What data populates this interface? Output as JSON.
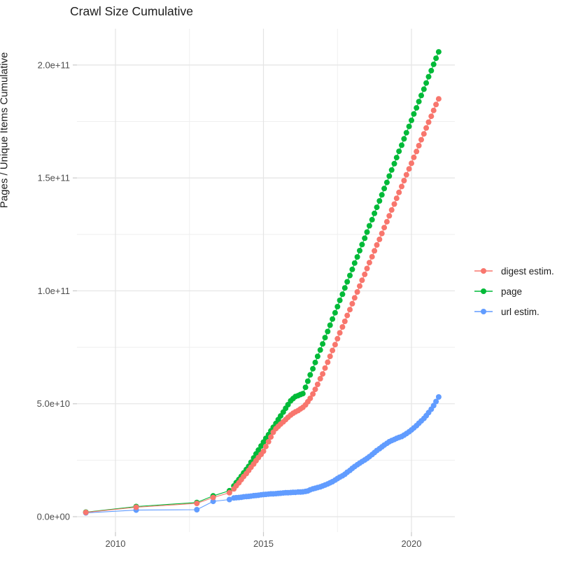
{
  "chart_data": {
    "type": "scatter",
    "title": "Crawl Size Cumulative",
    "xlabel": "",
    "ylabel": "Pages / Unique Items Cumulative",
    "legend_position": "right",
    "grid": true,
    "x_axis": {
      "major_ticks": [
        2010,
        2015,
        2020
      ],
      "major_labels": [
        "2010",
        "2015",
        "2020"
      ],
      "minor_ticks": [
        2012.5,
        2017.5
      ],
      "range": [
        2008.7,
        2021.45
      ]
    },
    "y_axis": {
      "major_ticks_e9": [
        0,
        50,
        100,
        150,
        200
      ],
      "major_labels": [
        "0.0e+00",
        "5.0e+10",
        "1.0e+11",
        "1.5e+11",
        "2.0e+11"
      ],
      "minor_ticks_e9": [
        25,
        75,
        125,
        175
      ],
      "range_e9": [
        0,
        216
      ]
    },
    "x_unit": "year",
    "y_unit": "items (billions)",
    "x": [
      2009.0,
      2010.7,
      2012.75,
      2013.3,
      2013.85,
      2014.0,
      2014.08,
      2014.17,
      2014.25,
      2014.33,
      2014.42,
      2014.5,
      2014.58,
      2014.67,
      2014.75,
      2014.83,
      2014.92,
      2015.0,
      2015.08,
      2015.17,
      2015.25,
      2015.33,
      2015.42,
      2015.5,
      2015.58,
      2015.67,
      2015.75,
      2015.83,
      2015.92,
      2016.0,
      2016.08,
      2016.17,
      2016.25,
      2016.33,
      2016.42,
      2016.5,
      2016.58,
      2016.67,
      2016.75,
      2016.83,
      2016.92,
      2017.0,
      2017.08,
      2017.17,
      2017.25,
      2017.33,
      2017.42,
      2017.5,
      2017.58,
      2017.67,
      2017.75,
      2017.83,
      2017.92,
      2018.0,
      2018.08,
      2018.17,
      2018.25,
      2018.33,
      2018.42,
      2018.5,
      2018.58,
      2018.67,
      2018.75,
      2018.83,
      2018.92,
      2019.0,
      2019.08,
      2019.17,
      2019.25,
      2019.33,
      2019.42,
      2019.5,
      2019.58,
      2019.67,
      2019.75,
      2019.83,
      2019.92,
      2020.0,
      2020.08,
      2020.17,
      2020.25,
      2020.33,
      2020.42,
      2020.5,
      2020.58,
      2020.67,
      2020.75,
      2020.83,
      2020.92
    ],
    "series": [
      {
        "name": "digest estim.",
        "color": "#F8766D",
        "values_e9": [
          1.9,
          4.2,
          5.9,
          8.5,
          10.6,
          12.3,
          13.7,
          15.0,
          16.4,
          17.8,
          19.1,
          20.5,
          21.9,
          23.3,
          24.8,
          26.2,
          27.6,
          29.0,
          31.1,
          33.2,
          35.3,
          37.4,
          39.0,
          40.0,
          41.0,
          42.0,
          43.0,
          44.0,
          45.0,
          45.8,
          46.4,
          47.0,
          47.7,
          48.4,
          49.5,
          50.9,
          52.4,
          54.3,
          56.4,
          58.6,
          61.1,
          63.2,
          65.8,
          68.4,
          71.0,
          73.6,
          76.2,
          78.8,
          81.4,
          84.0,
          86.5,
          89.1,
          91.7,
          94.3,
          96.9,
          99.5,
          102.1,
          104.7,
          107.3,
          109.9,
          112.5,
          115.1,
          117.7,
          120.3,
          122.8,
          125.4,
          128.0,
          130.6,
          133.2,
          135.8,
          138.4,
          141.0,
          143.6,
          146.2,
          148.8,
          151.4,
          154.0,
          156.5,
          159.1,
          161.7,
          164.3,
          166.9,
          169.5,
          172.1,
          174.7,
          177.3,
          179.9,
          182.5,
          185.0
        ]
      },
      {
        "name": "page",
        "color": "#00BA38",
        "values_e9": [
          2.0,
          4.5,
          6.3,
          9.2,
          11.5,
          13.6,
          15.1,
          16.5,
          17.9,
          19.4,
          20.9,
          22.3,
          24.1,
          26.0,
          27.8,
          29.5,
          31.3,
          33.0,
          34.7,
          36.3,
          38.0,
          39.6,
          41.3,
          43.0,
          44.6,
          46.3,
          48.0,
          49.6,
          51.3,
          52.3,
          53.2,
          53.6,
          54.1,
          54.5,
          57.3,
          60.0,
          62.8,
          65.5,
          68.3,
          71.0,
          73.8,
          76.5,
          79.3,
          82.0,
          84.8,
          87.5,
          90.3,
          93.0,
          95.8,
          98.5,
          101.3,
          104.0,
          106.8,
          109.5,
          112.3,
          115.0,
          117.8,
          120.5,
          123.3,
          126.0,
          128.8,
          131.5,
          134.3,
          137.0,
          139.8,
          142.5,
          145.3,
          148.0,
          150.8,
          153.5,
          156.3,
          159.0,
          161.8,
          164.5,
          167.3,
          170.0,
          172.8,
          175.5,
          178.3,
          181.0,
          183.8,
          186.5,
          189.3,
          192.0,
          194.8,
          197.5,
          200.3,
          203.0,
          205.8
        ]
      },
      {
        "name": "url estim.",
        "color": "#619CFF",
        "values_e9": [
          1.7,
          2.9,
          3.1,
          6.8,
          7.6,
          8.3,
          8.4,
          8.5,
          8.6,
          8.8,
          8.9,
          9.0,
          9.1,
          9.3,
          9.4,
          9.5,
          9.7,
          9.8,
          9.9,
          10.0,
          10.1,
          10.1,
          10.2,
          10.3,
          10.4,
          10.5,
          10.6,
          10.6,
          10.7,
          10.8,
          10.8,
          10.9,
          10.9,
          11.0,
          11.2,
          11.4,
          11.9,
          12.3,
          12.6,
          12.9,
          13.2,
          13.6,
          14.0,
          14.5,
          15.0,
          15.5,
          16.2,
          16.9,
          17.5,
          18.1,
          18.8,
          19.7,
          20.5,
          21.4,
          22.2,
          23.0,
          23.7,
          24.4,
          25.1,
          25.8,
          26.6,
          27.5,
          28.4,
          29.3,
          30.1,
          30.9,
          31.7,
          32.5,
          33.2,
          33.7,
          34.2,
          34.7,
          35.1,
          35.5,
          36.1,
          36.8,
          37.6,
          38.4,
          39.3,
          40.3,
          41.4,
          42.4,
          43.5,
          44.7,
          46.1,
          47.6,
          49.2,
          51.0,
          53.0
        ]
      }
    ],
    "colors": {
      "grid_major": "#E4E4E4",
      "grid_minor": "#EFEFEF",
      "tick_mark": "#C9C9C9",
      "tick_text": "#4D4D4D",
      "title_text": "#1D1D1D"
    }
  }
}
